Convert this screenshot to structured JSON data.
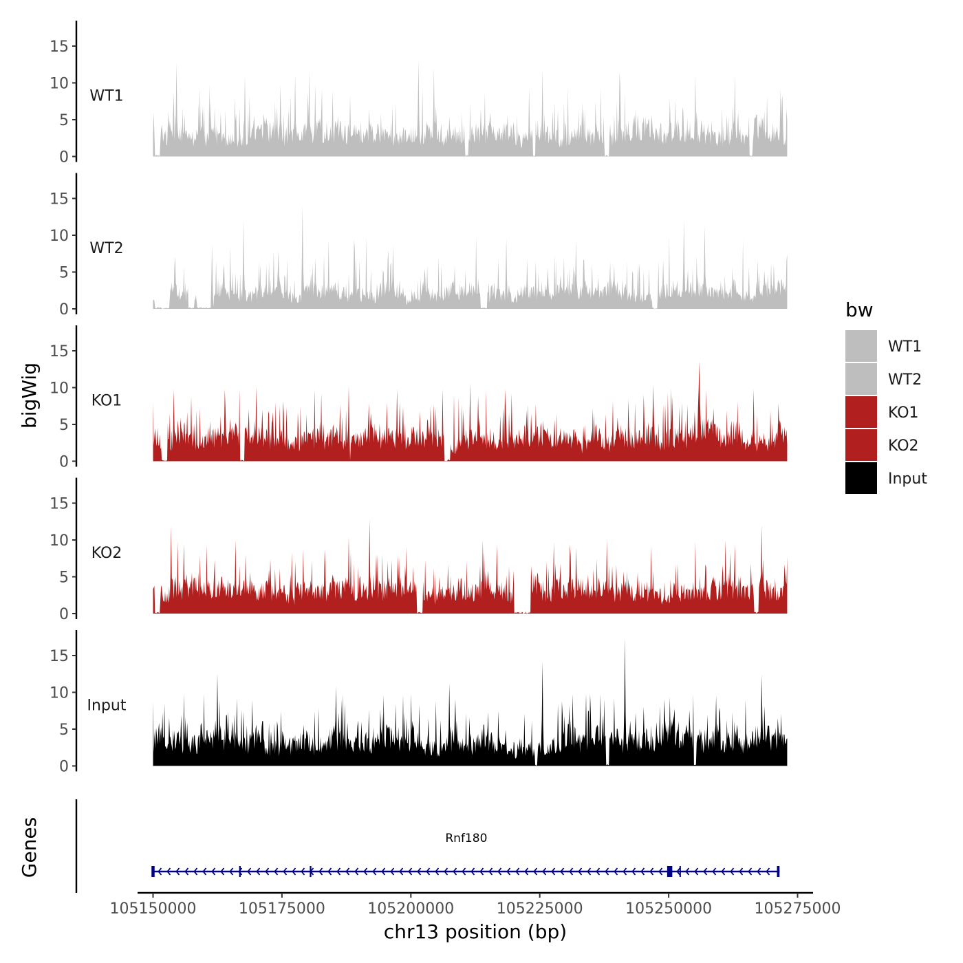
{
  "chart_data": {
    "type": "area",
    "chromosome": "chr13",
    "xlabel": "chr13 position (bp)",
    "ylabel": "bigWig",
    "genes_label": "Genes",
    "xlim": [
      105147000,
      105278000
    ],
    "x_ticks": [
      105150000,
      105175000,
      105200000,
      105225000,
      105250000,
      105275000
    ],
    "x_tick_labels": [
      "105150000",
      "105175000",
      "105200000",
      "105225000",
      "105250000",
      "105275000"
    ],
    "data_range": [
      105150000,
      105273000
    ],
    "ylim": [
      0,
      18
    ],
    "y_ticks": [
      0,
      5,
      10,
      15
    ],
    "y_tick_labels": [
      "0",
      "5",
      "10",
      "15"
    ],
    "colors": {
      "WT": "#bebebe",
      "KO": "#b21f1f",
      "Input": "#000000",
      "gene": "#000080"
    },
    "tracks": [
      {
        "name": "WT1",
        "color": "#bebebe",
        "seed": 11,
        "base": 3.6,
        "spread": 3.8,
        "peaks": [
          [
            105154500,
            12.8
          ],
          [
            105167800,
            11.0
          ],
          [
            105177500,
            11.2
          ],
          [
            105180300,
            11.6
          ],
          [
            105201500,
            13.2
          ],
          [
            105204500,
            12.0
          ],
          [
            105225500,
            11.8
          ],
          [
            105240500,
            11.4
          ],
          [
            105255200,
            11.2
          ],
          [
            105262800,
            11.1
          ]
        ],
        "gaps": [
          [
            105150300,
            105151300
          ],
          [
            105210500,
            105211200
          ],
          [
            105223600,
            105224200
          ],
          [
            105237500,
            105238500
          ],
          [
            105265700,
            105266300
          ]
        ]
      },
      {
        "name": "WT2",
        "color": "#bebebe",
        "seed": 23,
        "base": 2.6,
        "spread": 3.6,
        "peaks": [
          [
            105161500,
            8.8
          ],
          [
            105167500,
            12.0
          ],
          [
            105179000,
            14.0
          ],
          [
            105189000,
            9.4
          ],
          [
            105196500,
            8.6
          ],
          [
            105218500,
            9.6
          ],
          [
            105232000,
            9.4
          ],
          [
            105253000,
            12.2
          ],
          [
            105257000,
            11.4
          ]
        ],
        "gaps": [
          [
            105150300,
            105153200
          ],
          [
            105156800,
            105158000
          ],
          [
            105158500,
            105161800
          ],
          [
            105213500,
            105214800
          ],
          [
            105246800,
            105247800
          ]
        ]
      },
      {
        "name": "KO1",
        "color": "#b21f1f",
        "seed": 37,
        "base": 3.6,
        "spread": 3.8,
        "peaks": [
          [
            105154000,
            9.8
          ],
          [
            105170000,
            10.2
          ],
          [
            105188000,
            10.2
          ],
          [
            105197300,
            9.8
          ],
          [
            105211500,
            10.6
          ],
          [
            105219500,
            9.2
          ],
          [
            105247000,
            10.4
          ],
          [
            105250500,
            9.8
          ],
          [
            105256000,
            13.6
          ],
          [
            105266500,
            9.8
          ]
        ],
        "gaps": [
          [
            105151600,
            105152800
          ],
          [
            105166800,
            105167800
          ],
          [
            105187800,
            105188300
          ],
          [
            105206500,
            105207600
          ]
        ]
      },
      {
        "name": "KO2",
        "color": "#b21f1f",
        "seed": 41,
        "base": 3.7,
        "spread": 3.9,
        "peaks": [
          [
            105153500,
            11.8
          ],
          [
            105156000,
            9.5
          ],
          [
            105166000,
            10.0
          ],
          [
            105188000,
            10.4
          ],
          [
            105192000,
            12.8
          ],
          [
            105214000,
            10.0
          ],
          [
            105238000,
            10.0
          ],
          [
            105261000,
            10.0
          ],
          [
            105268000,
            12.0
          ]
        ],
        "gaps": [
          [
            105150300,
            105151400
          ],
          [
            105201200,
            105202300
          ],
          [
            105220000,
            105223200
          ],
          [
            105266500,
            105267500
          ]
        ]
      },
      {
        "name": "Input",
        "color": "#000000",
        "seed": 53,
        "base": 3.9,
        "spread": 4.0,
        "peaks": [
          [
            105162500,
            12.6
          ],
          [
            105185500,
            10.8
          ],
          [
            105207500,
            11.2
          ],
          [
            105225500,
            14.2
          ],
          [
            105241500,
            17.4
          ],
          [
            105268000,
            12.4
          ]
        ],
        "gaps": [
          [
            105224000,
            105224500
          ],
          [
            105237800,
            105238500
          ],
          [
            105254800,
            105255300
          ]
        ]
      }
    ],
    "gene": {
      "name": "Rnf180",
      "strand": "-",
      "start": 105150000,
      "end": 105271500,
      "exons": [
        [
          105149700,
          105150300
        ],
        [
          105166700,
          105167000
        ],
        [
          105180400,
          105180700
        ],
        [
          105249700,
          105250700
        ],
        [
          105252100,
          105252300
        ],
        [
          105271000,
          105271500
        ]
      ]
    },
    "legend": {
      "title": "bw",
      "entries": [
        {
          "label": "WT1",
          "color": "#bebebe"
        },
        {
          "label": "WT2",
          "color": "#bebebe"
        },
        {
          "label": "KO1",
          "color": "#b21f1f"
        },
        {
          "label": "KO2",
          "color": "#b21f1f"
        },
        {
          "label": "Input",
          "color": "#000000"
        }
      ]
    }
  }
}
